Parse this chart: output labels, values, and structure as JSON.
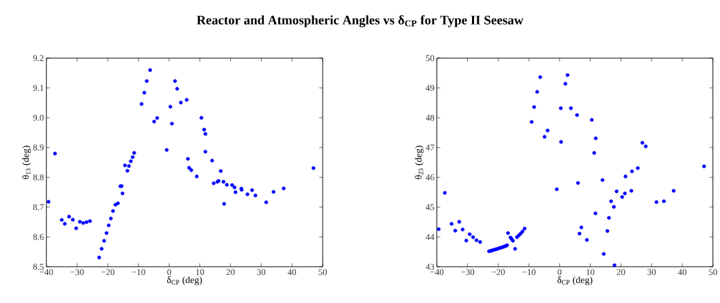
{
  "chart_data": [
    {
      "type": "scatter",
      "title": "Reactor and Atmospheric Angles vs δ$_{CP}$ for Type II Seesaw",
      "xlabel": "δ$_{CP}$ (deg)",
      "ylabel": "θ$_{13}$ (deg)",
      "marker": "circle",
      "grid": false,
      "xlim": [
        -40,
        50
      ],
      "ylim": [
        8.5,
        9.2
      ],
      "xticks": [
        {
          "value": -40,
          "label": "−40"
        },
        {
          "value": -30,
          "label": "−30"
        },
        {
          "value": -20,
          "label": "−20"
        },
        {
          "value": -10,
          "label": "−10"
        },
        0,
        10,
        20,
        30,
        40,
        50
      ],
      "yticks": [
        {
          "value": 8.5,
          "label": "8.5"
        },
        {
          "value": 8.6,
          "label": "8.6"
        },
        {
          "value": 8.7,
          "label": "8.7"
        },
        {
          "value": 8.8,
          "label": "8.8"
        },
        {
          "value": 8.9,
          "label": "8.9"
        },
        {
          "value": 9.0,
          "label": "9.0"
        },
        {
          "value": 9.1,
          "label": "9.1"
        },
        {
          "value": 9.2,
          "label": "9.2"
        }
      ],
      "series": [
        {
          "color": "#0000ff",
          "x": [
            -39.3,
            -37.2,
            -35.0,
            -34.0,
            -32.6,
            -31.4,
            -30.3,
            -29.1,
            -28.0,
            -26.9,
            -25.8,
            -22.8,
            -22.0,
            -21.2,
            -20.4,
            -19.7,
            -19.0,
            -18.3,
            -17.5,
            -16.7,
            -15.9,
            -15.5,
            -15.2,
            -14.4,
            -13.6,
            -13.1,
            -12.5,
            -11.9,
            -11.4,
            -9.0,
            -8.1,
            -7.3,
            -6.2,
            -4.9,
            -3.9,
            -0.8,
            0.4,
            0.9,
            1.9,
            2.6,
            3.8,
            5.7,
            6.1,
            6.5,
            7.2,
            9.0,
            10.5,
            11.4,
            11.8,
            11.8,
            14.0,
            14.5,
            15.7,
            16.1,
            16.8,
            17.7,
            17.9,
            18.8,
            20.5,
            21.3,
            21.6,
            23.5,
            23.6,
            25.5,
            27.0,
            28.1,
            31.6,
            34.0,
            37.3,
            47.0
          ],
          "values": [
            8.718,
            8.88,
            8.657,
            8.644,
            8.668,
            8.658,
            8.629,
            8.651,
            8.647,
            8.65,
            8.653,
            8.531,
            8.56,
            8.587,
            8.613,
            8.639,
            8.662,
            8.687,
            8.708,
            8.713,
            8.77,
            8.771,
            8.746,
            8.84,
            8.822,
            8.838,
            8.854,
            8.868,
            8.882,
            9.046,
            9.084,
            9.123,
            9.16,
            8.987,
            8.999,
            8.892,
            9.037,
            8.98,
            9.123,
            9.097,
            9.051,
            9.06,
            8.862,
            8.832,
            8.824,
            8.803,
            9.0,
            8.96,
            8.946,
            8.886,
            8.856,
            8.78,
            8.785,
            8.788,
            8.821,
            8.785,
            8.711,
            8.775,
            8.774,
            8.766,
            8.75,
            8.762,
            8.758,
            8.743,
            8.757,
            8.739,
            8.716,
            8.751,
            8.763,
            8.831
          ]
        }
      ]
    },
    {
      "type": "scatter",
      "xlabel": "δ$_{CP}$ (deg)",
      "ylabel": "θ$_{23}$ (deg)",
      "marker": "circle",
      "grid": false,
      "xlim": [
        -40,
        50
      ],
      "ylim": [
        43,
        50
      ],
      "xticks": [
        {
          "value": -40,
          "label": "−40"
        },
        {
          "value": -30,
          "label": "−30"
        },
        {
          "value": -20,
          "label": "−20"
        },
        {
          "value": -10,
          "label": "−10"
        },
        0,
        10,
        20,
        30,
        40,
        50
      ],
      "yticks": [
        43,
        44,
        45,
        46,
        47,
        48,
        49,
        50
      ],
      "series": [
        {
          "color": "#0000ff",
          "x": [
            -39.4,
            -37.4,
            -35.2,
            -34.0,
            -32.7,
            -31.6,
            -30.4,
            -29.3,
            -28.2,
            -27.1,
            -25.9,
            -23.0,
            -22.5,
            -22.0,
            -21.5,
            -21.0,
            -20.5,
            -20.0,
            -19.5,
            -19.0,
            -18.5,
            -18.0,
            -17.5,
            -17.1,
            -16.8,
            -16.0,
            -15.6,
            -15.2,
            -14.5,
            -13.9,
            -13.3,
            -12.7,
            -12.1,
            -11.4,
            -9.1,
            -8.3,
            -7.3,
            -6.3,
            -4.9,
            -3.9,
            -0.9,
            0.4,
            0.5,
            1.9,
            2.6,
            3.7,
            5.7,
            6.0,
            6.5,
            7.1,
            8.9,
            10.5,
            11.3,
            11.7,
            11.8,
            14.0,
            14.4,
            15.6,
            16.1,
            16.8,
            17.7,
            17.9,
            18.6,
            20.4,
            21.3,
            21.5,
            23.4,
            23.6,
            25.5,
            27.0,
            28.1,
            31.6,
            34.0,
            37.2,
            47.1
          ],
          "values": [
            44.26,
            45.48,
            44.44,
            44.21,
            44.51,
            44.25,
            43.88,
            44.09,
            43.99,
            43.89,
            43.83,
            43.52,
            43.53,
            43.55,
            43.56,
            43.58,
            43.59,
            43.61,
            43.63,
            43.64,
            43.66,
            43.68,
            43.7,
            43.72,
            44.13,
            43.98,
            43.93,
            43.87,
            43.6,
            43.99,
            44.05,
            44.11,
            44.18,
            44.28,
            47.86,
            48.36,
            48.87,
            49.36,
            47.36,
            47.57,
            45.6,
            48.32,
            47.19,
            49.14,
            49.43,
            48.32,
            48.09,
            45.81,
            44.11,
            44.32,
            43.9,
            47.93,
            46.82,
            44.79,
            47.31,
            45.91,
            43.43,
            44.2,
            44.64,
            45.2,
            45.01,
            43.05,
            45.53,
            45.34,
            45.46,
            46.03,
            45.55,
            46.2,
            46.31,
            47.16,
            47.04,
            45.17,
            45.2,
            45.55,
            46.37
          ]
        }
      ]
    }
  ]
}
